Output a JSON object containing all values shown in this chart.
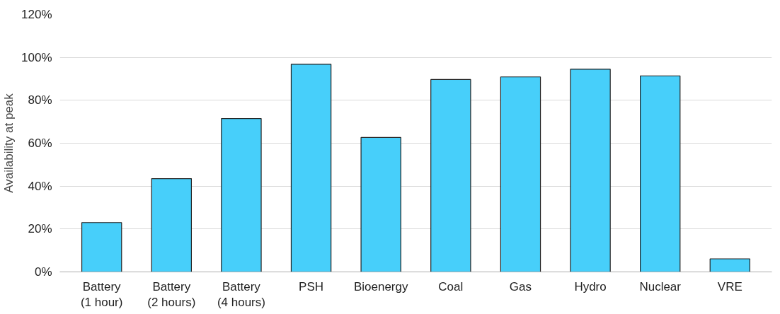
{
  "chart_data": {
    "type": "bar",
    "ylabel": "Availability at peak",
    "categories": [
      "Battery\n(1 hour)",
      "Battery\n(2 hours)",
      "Battery\n(4 hours)",
      "PSH",
      "Bioenergy",
      "Coal",
      "Gas",
      "Hydro",
      "Nuclear",
      "VRE"
    ],
    "values": [
      23,
      43.5,
      71.5,
      96.8,
      62.7,
      89.7,
      90.9,
      94.5,
      91.4,
      6.1
    ],
    "color": "#47cffa",
    "ylim": [
      0,
      120
    ],
    "yticks": [
      {
        "value": 0,
        "label": "0%"
      },
      {
        "value": 20,
        "label": "20%"
      },
      {
        "value": 40,
        "label": "40%"
      },
      {
        "value": 60,
        "label": "60%"
      },
      {
        "value": 80,
        "label": "80%"
      },
      {
        "value": 100,
        "label": "100%"
      },
      {
        "value": 120,
        "label": "120%"
      }
    ],
    "grid": "y"
  }
}
